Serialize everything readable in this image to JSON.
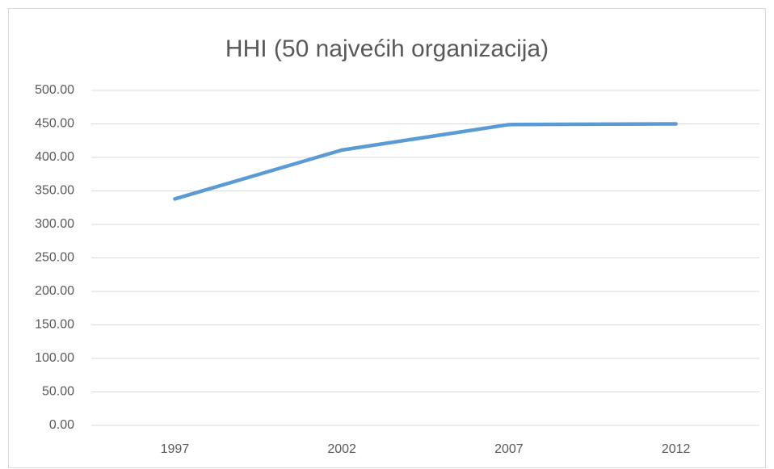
{
  "chart_data": {
    "type": "line",
    "title": "HHI (50 najvećih organizacija)",
    "categories": [
      "1997",
      "2002",
      "2007",
      "2012"
    ],
    "values": [
      338,
      411,
      449,
      450
    ],
    "color": "#5b9bd5",
    "ylim": [
      0,
      500
    ],
    "yticks": [
      {
        "value": 0,
        "label": "0.00"
      },
      {
        "value": 50,
        "label": "50.00"
      },
      {
        "value": 100,
        "label": "100.00"
      },
      {
        "value": 150,
        "label": "150.00"
      },
      {
        "value": 200,
        "label": "200.00"
      },
      {
        "value": 250,
        "label": "250.00"
      },
      {
        "value": 300,
        "label": "300.00"
      },
      {
        "value": 350,
        "label": "350.00"
      },
      {
        "value": 400,
        "label": "400.00"
      },
      {
        "value": 450,
        "label": "450.00"
      },
      {
        "value": 500,
        "label": "500.00"
      }
    ],
    "grid": true
  }
}
